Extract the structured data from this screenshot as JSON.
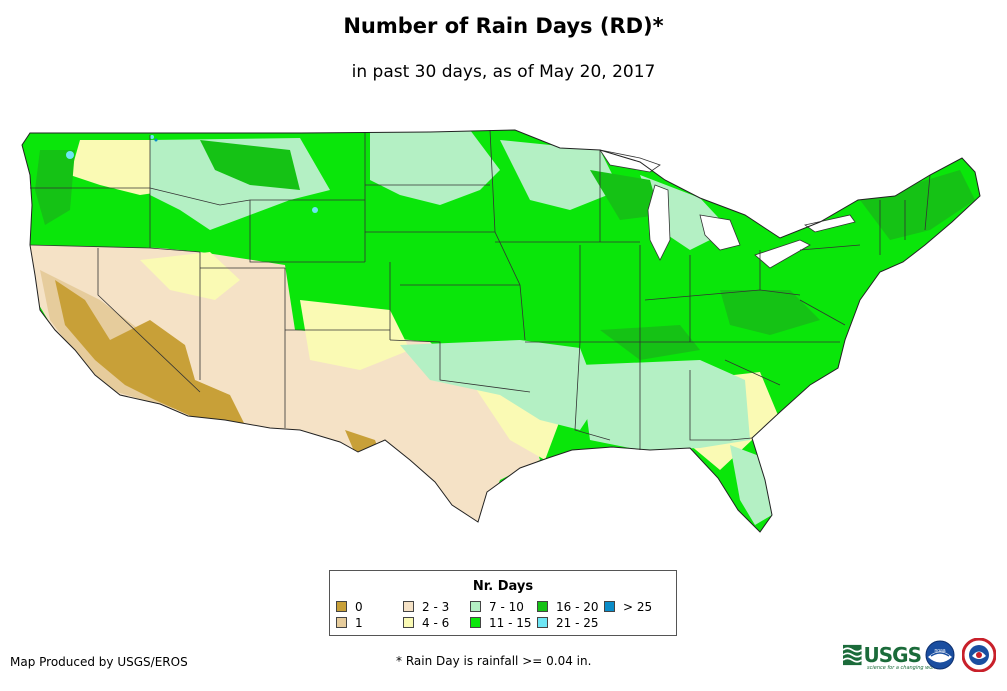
{
  "title": "Number of Rain Days (RD)*",
  "subtitle": "in past 30 days, as of May 20, 2017",
  "legend": {
    "title": "Nr. Days",
    "classes": [
      {
        "label": "0",
        "color": "#c8a038"
      },
      {
        "label": "1",
        "color": "#e6cc9c"
      },
      {
        "label": "2 - 3",
        "color": "#f5e2c6"
      },
      {
        "label": "4 - 6",
        "color": "#fafab4"
      },
      {
        "label": "7 - 10",
        "color": "#b4f0c4"
      },
      {
        "label": "11 - 15",
        "color": "#0ae60a"
      },
      {
        "label": "16 - 20",
        "color": "#15c215"
      },
      {
        "label": "21 - 25",
        "color": "#6ee6f5"
      },
      {
        "label": "> 25",
        "color": "#0a8cc8"
      }
    ]
  },
  "footer": {
    "credit": "Map Produced by USGS/EROS",
    "footnote": "* Rain Day is rainfall >= 0.04 in."
  },
  "logos": {
    "usgs_text": "USGS",
    "usgs_tagline": "science for a changing world",
    "noaa_text": "noaa"
  }
}
